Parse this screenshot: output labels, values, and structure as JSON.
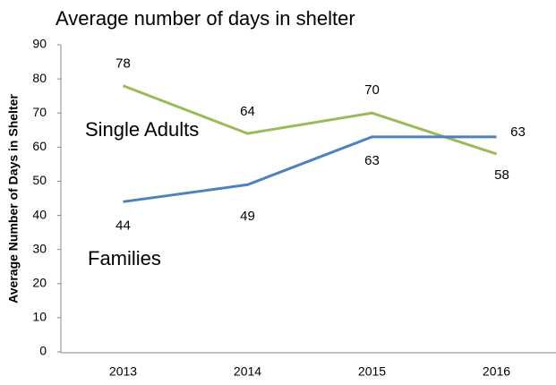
{
  "chart_data": {
    "type": "line",
    "title": "Average number of days in shelter",
    "y_label": "Average Number of Days in Shelter",
    "categories": [
      "2013",
      "2014",
      "2015",
      "2016"
    ],
    "series": [
      {
        "name": "Single Adults",
        "color": "#9bbb59",
        "values": [
          78,
          64,
          70,
          58
        ]
      },
      {
        "name": "Families",
        "color": "#4f81bd",
        "values": [
          44,
          49,
          63,
          63
        ]
      }
    ],
    "ylim": [
      0,
      90
    ],
    "yticks": [
      0,
      10,
      20,
      30,
      40,
      50,
      60,
      70,
      80,
      90
    ],
    "grid": false
  }
}
